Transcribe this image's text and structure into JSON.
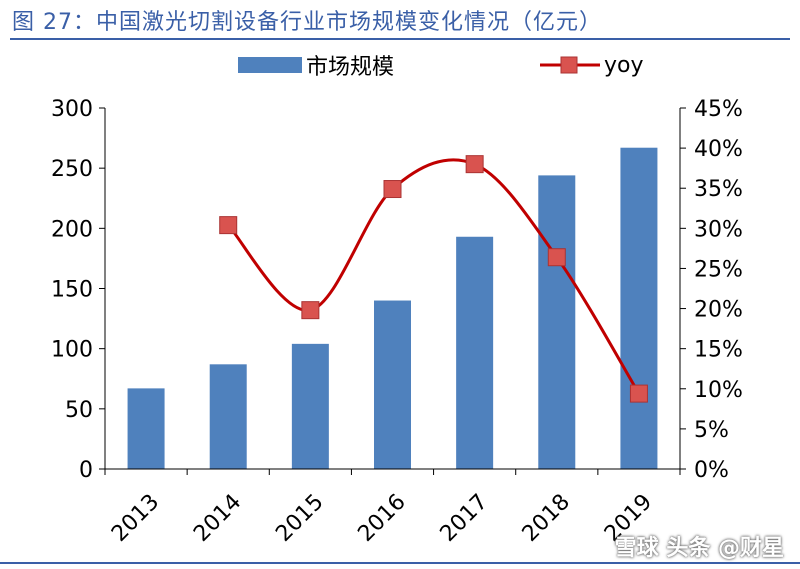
{
  "header": {
    "title": "图 27：中国激光切割设备行业市场规模变化情况（亿元）"
  },
  "watermark": "雪球 头条 @财星",
  "chart_data": {
    "type": "bar",
    "categories": [
      "2013",
      "2014",
      "2015",
      "2016",
      "2017",
      "2018",
      "2019"
    ],
    "series": [
      {
        "name": "市场规模",
        "type": "bar",
        "axis": "left",
        "color": "#4f81bd",
        "values": [
          67,
          87,
          104,
          140,
          193,
          244,
          267
        ]
      },
      {
        "name": "yoy",
        "type": "line",
        "axis": "right",
        "color": "#c00000",
        "marker_color": "#d9534f",
        "values": [
          null,
          30.4,
          19.8,
          34.9,
          38.0,
          26.4,
          9.4
        ]
      }
    ],
    "y_left": {
      "min": 0,
      "max": 300,
      "ticks": [
        "0",
        "50",
        "100",
        "150",
        "200",
        "250",
        "300"
      ]
    },
    "y_right": {
      "min": 0,
      "max": 45,
      "ticks": [
        "0%",
        "5%",
        "10%",
        "15%",
        "20%",
        "25%",
        "30%",
        "35%",
        "40%",
        "45%"
      ]
    },
    "legend_position": "top",
    "grid": false
  }
}
